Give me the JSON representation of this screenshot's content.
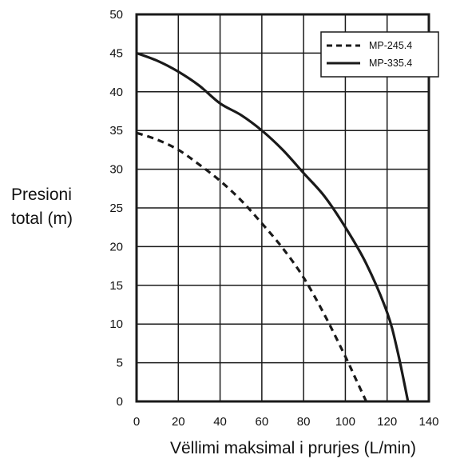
{
  "chart_data": {
    "type": "line",
    "title": "",
    "xlabel": "Vëllimi maksimal i prurjes (L/min)",
    "ylabel_lines": [
      "Presioni",
      "total (m)"
    ],
    "xlim": [
      0,
      140
    ],
    "ylim": [
      0,
      50
    ],
    "x_ticks": [
      0,
      20,
      40,
      60,
      80,
      100,
      120,
      140
    ],
    "y_ticks": [
      0,
      5,
      10,
      15,
      20,
      25,
      30,
      35,
      40,
      45,
      50
    ],
    "grid": true,
    "legend_position": "top-right",
    "series": [
      {
        "name": "MP-245.4",
        "line_style": "dashed",
        "color": "#1a1a1a",
        "x": [
          0,
          10,
          20,
          30,
          40,
          50,
          60,
          70,
          80,
          90,
          100,
          105,
          110
        ],
        "y": [
          34.7,
          33.8,
          32.5,
          30.6,
          28.5,
          26.0,
          23.0,
          19.8,
          16.0,
          11.2,
          5.8,
          2.9,
          0
        ]
      },
      {
        "name": "MP-335.4",
        "line_style": "solid",
        "color": "#1a1a1a",
        "x": [
          0,
          10,
          20,
          30,
          40,
          50,
          60,
          70,
          80,
          90,
          100,
          110,
          120,
          125,
          130
        ],
        "y": [
          45.0,
          44.0,
          42.6,
          40.8,
          38.5,
          37.0,
          35.0,
          32.5,
          29.5,
          26.5,
          22.5,
          17.8,
          11.5,
          6.5,
          0
        ]
      }
    ]
  }
}
